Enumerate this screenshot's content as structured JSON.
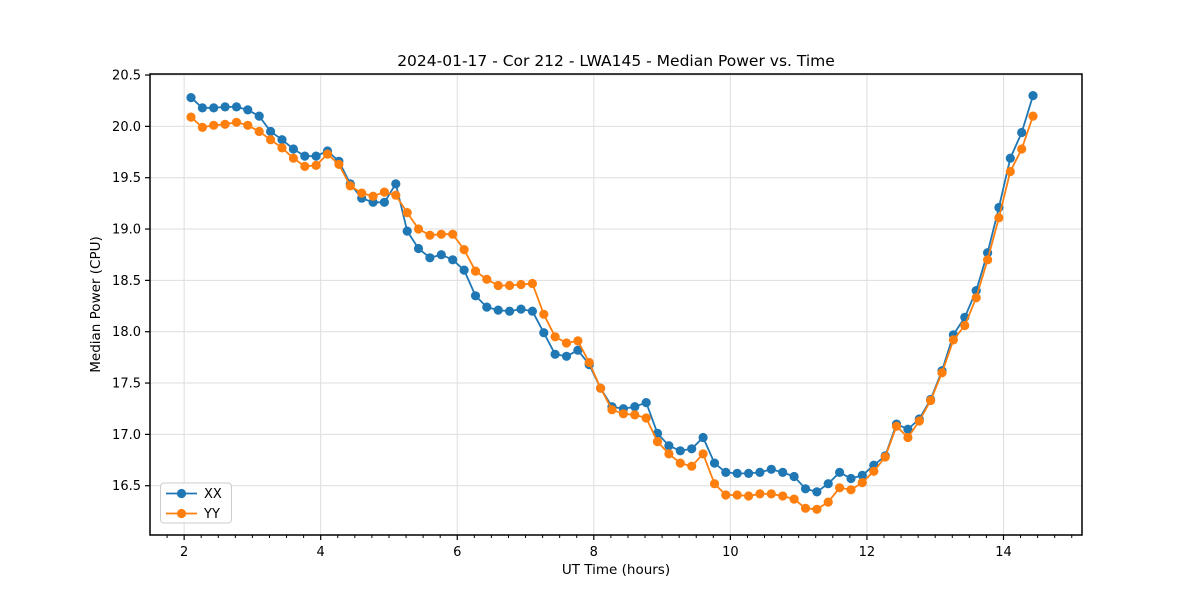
{
  "figure": {
    "title": "2024-01-17 - Cor 212 - LWA145 - Median Power vs. Time",
    "xlabel": "UT Time (hours)",
    "ylabel": "Median Power (CPU)"
  },
  "legend": {
    "items": [
      {
        "label": "XX",
        "color": "#1f77b4"
      },
      {
        "label": "YY",
        "color": "#ff7f0e"
      }
    ]
  },
  "chart_data": {
    "type": "line",
    "title": "2024-01-17 - Cor 212 - LWA145 - Median Power vs. Time",
    "xlabel": "UT Time (hours)",
    "ylabel": "Median Power (CPU)",
    "xlim": [
      1.5,
      15.15
    ],
    "ylim": [
      16.02,
      20.51
    ],
    "xticks": [
      2,
      4,
      6,
      8,
      10,
      12,
      14
    ],
    "x_tick_labels": [
      "2",
      "4",
      "6",
      "8",
      "10",
      "12",
      "14"
    ],
    "x_minor_tick_step": 0.25,
    "yticks": [
      16.5,
      17.0,
      17.5,
      18.0,
      18.5,
      19.0,
      19.5,
      20.0,
      20.5
    ],
    "y_tick_labels": [
      "16.5",
      "17.0",
      "17.5",
      "18.0",
      "18.5",
      "19.0",
      "19.5",
      "20.0",
      "20.5"
    ],
    "grid": true,
    "grid_color": "#dedede",
    "legend_position": "lower left",
    "marker": "circle",
    "x": [
      2.1,
      2.267,
      2.433,
      2.6,
      2.767,
      2.933,
      3.1,
      3.267,
      3.433,
      3.6,
      3.767,
      3.933,
      4.1,
      4.267,
      4.433,
      4.6,
      4.767,
      4.933,
      5.1,
      5.267,
      5.433,
      5.6,
      5.767,
      5.933,
      6.1,
      6.267,
      6.433,
      6.6,
      6.767,
      6.933,
      7.1,
      7.267,
      7.433,
      7.6,
      7.767,
      7.933,
      8.1,
      8.267,
      8.433,
      8.6,
      8.767,
      8.933,
      9.1,
      9.267,
      9.433,
      9.6,
      9.767,
      9.933,
      10.1,
      10.267,
      10.433,
      10.6,
      10.767,
      10.933,
      11.1,
      11.267,
      11.433,
      11.6,
      11.767,
      11.933,
      12.1,
      12.267,
      12.433,
      12.6,
      12.767,
      12.933,
      13.1,
      13.267,
      13.433,
      13.6,
      13.767,
      13.933,
      14.1,
      14.267,
      14.433
    ],
    "series": [
      {
        "name": "XX",
        "color": "#1f77b4",
        "values": [
          20.28,
          20.18,
          20.18,
          20.19,
          20.19,
          20.16,
          20.1,
          19.95,
          19.87,
          19.78,
          19.71,
          19.71,
          19.76,
          19.66,
          19.44,
          19.3,
          19.26,
          19.26,
          19.44,
          18.98,
          18.81,
          18.72,
          18.75,
          18.7,
          18.6,
          18.35,
          18.24,
          18.21,
          18.2,
          18.22,
          18.2,
          17.99,
          17.78,
          17.76,
          17.82,
          17.68,
          17.45,
          17.27,
          17.25,
          17.27,
          17.31,
          17.01,
          16.89,
          16.84,
          16.86,
          16.97,
          16.72,
          16.63,
          16.62,
          16.62,
          16.63,
          16.66,
          16.63,
          16.59,
          16.47,
          16.44,
          16.52,
          16.63,
          16.57,
          16.6,
          16.7,
          16.79,
          17.1,
          17.05,
          17.15,
          17.34,
          17.62,
          17.97,
          18.14,
          18.4,
          18.77,
          19.21,
          19.69,
          19.94,
          20.3
        ]
      },
      {
        "name": "YY",
        "color": "#ff7f0e",
        "values": [
          20.09,
          19.99,
          20.01,
          20.02,
          20.04,
          20.01,
          19.95,
          19.87,
          19.79,
          19.69,
          19.61,
          19.62,
          19.73,
          19.63,
          19.42,
          19.35,
          19.32,
          19.36,
          19.33,
          19.16,
          19.0,
          18.94,
          18.95,
          18.95,
          18.8,
          18.59,
          18.51,
          18.45,
          18.45,
          18.46,
          18.47,
          18.17,
          17.95,
          17.89,
          17.91,
          17.7,
          17.45,
          17.24,
          17.2,
          17.19,
          17.16,
          16.93,
          16.81,
          16.72,
          16.69,
          16.81,
          16.52,
          16.41,
          16.41,
          16.4,
          16.42,
          16.42,
          16.4,
          16.37,
          16.28,
          16.27,
          16.34,
          16.48,
          16.46,
          16.53,
          16.64,
          16.78,
          17.08,
          16.97,
          17.13,
          17.33,
          17.6,
          17.92,
          18.06,
          18.33,
          18.7,
          19.11,
          19.56,
          19.78,
          20.1
        ]
      }
    ]
  }
}
